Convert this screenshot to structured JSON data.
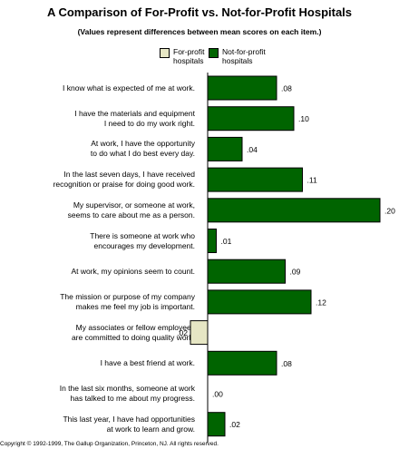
{
  "colors": {
    "for_profit": "#e6e6c4",
    "not_for_profit": "#006400",
    "border": "#000000"
  },
  "chart_data": {
    "type": "bar",
    "orientation": "horizontal",
    "title": "A Comparison of For-Profit vs. Not-for-Profit Hospitals",
    "subtitle": "(Values represent differences between mean scores on each item.)",
    "legend": [
      "For-profit hospitals",
      "Not-for-profit hospitals"
    ],
    "categories": [
      [
        "I know what is expected of me at work."
      ],
      [
        "I have the materials and equipment",
        "I need to do my work right."
      ],
      [
        "At work, I have the opportunity",
        "to do what I do best every day."
      ],
      [
        "In the last seven days, I have received",
        "recognition or praise for doing good work."
      ],
      [
        "My supervisor, or someone at work,",
        "seems to care about me as a person."
      ],
      [
        "There is someone at work who",
        "encourages my development."
      ],
      [
        "At work, my opinions seem to count."
      ],
      [
        "The mission or purpose of my company",
        "makes me feel my job is important."
      ],
      [
        "My associates or fellow employees",
        "are committed to doing quality work."
      ],
      [
        "I have a best friend at work."
      ],
      [
        "In the last six months, someone at work",
        "has talked to me about my progress."
      ],
      [
        "This last year, I have had opportunities",
        "at work to learn and grow."
      ]
    ],
    "values": [
      0.08,
      0.1,
      0.04,
      0.11,
      0.2,
      0.01,
      0.09,
      0.12,
      0.02,
      0.08,
      0.0,
      0.02
    ],
    "favors": [
      "not-for-profit",
      "not-for-profit",
      "not-for-profit",
      "not-for-profit",
      "not-for-profit",
      "not-for-profit",
      "not-for-profit",
      "not-for-profit",
      "for-profit",
      "not-for-profit",
      "not-for-profit",
      "not-for-profit"
    ],
    "value_labels": [
      ".08",
      ".10",
      ".04",
      ".11",
      ".20",
      ".01",
      ".09",
      ".12",
      ".02",
      ".08",
      ".00",
      ".02"
    ],
    "grid": false
  },
  "footer": "Copyright © 1992-1999, The Gallup Organization, Princeton, NJ. All rights reserved."
}
